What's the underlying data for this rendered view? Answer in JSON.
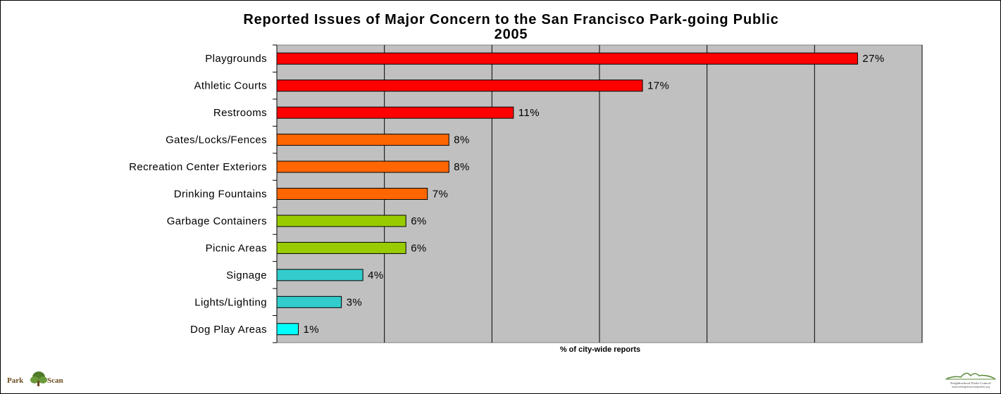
{
  "chart_data": {
    "type": "bar",
    "orientation": "horizontal",
    "title": "Reported Issues of Major Concern to the San Francisco Park-going Public",
    "subtitle": "2005",
    "xlabel": "% of city-wide reports",
    "ylabel": "",
    "xlim": [
      0,
      30
    ],
    "grid": true,
    "legend": "none",
    "categories": [
      "Playgrounds",
      "Athletic Courts",
      "Restrooms",
      "Gates/Locks/Fences",
      "Recreation Center Exteriors",
      "Drinking Fountains",
      "Garbage Containers",
      "Picnic Areas",
      "Signage",
      "Lights/Lighting",
      "Dog Play Areas"
    ],
    "values": [
      27,
      17,
      11,
      8,
      8,
      7,
      6,
      6,
      4,
      3,
      1
    ],
    "value_labels": [
      "27%",
      "17%",
      "11%",
      "8%",
      "8%",
      "7%",
      "6%",
      "6%",
      "4%",
      "3%",
      "1%"
    ],
    "bar_colors": [
      "#ff0000",
      "#ff0000",
      "#ff0000",
      "#ff6600",
      "#ff6600",
      "#ff6600",
      "#99cc00",
      "#99cc00",
      "#33cccc",
      "#33cccc",
      "#00ffff"
    ],
    "plot_background": "#c0c0c0"
  },
  "logos": {
    "left": {
      "icon": "parkscan-logo",
      "park": "Park",
      "scan": "Scan"
    },
    "right": {
      "icon": "neighborhood-parks-council-logo",
      "line1": "Neighborhood Parks Council",
      "line2": "www.sfneighborhoodparks.org"
    }
  }
}
